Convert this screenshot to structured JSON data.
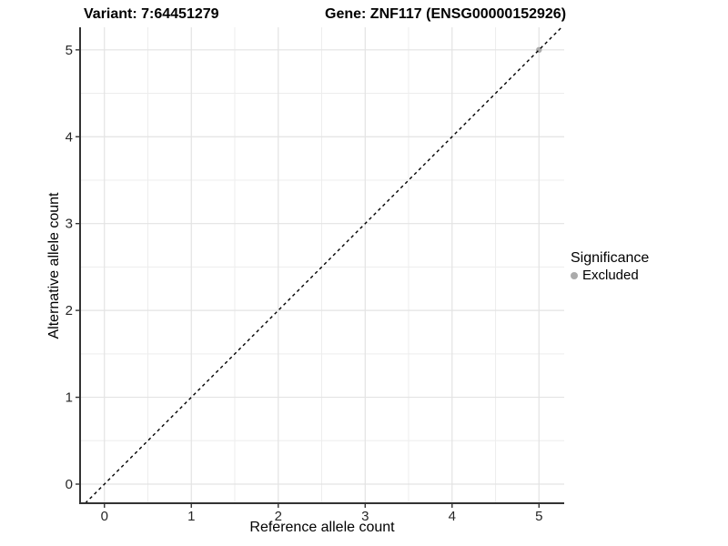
{
  "chart_data": {
    "type": "scatter",
    "title_left": "Variant: 7:64451279",
    "title_right": "Gene: ZNF117 (ENSG00000152926)",
    "xlabel": "Reference allele count",
    "ylabel": "Alternative allele count",
    "xticks": [
      0,
      1,
      2,
      3,
      4,
      5
    ],
    "yticks": [
      0,
      1,
      2,
      3,
      4,
      5
    ],
    "xlim": [
      -0.28,
      5.29
    ],
    "ylim": [
      -0.22,
      5.26
    ],
    "grid": "major+minor",
    "legend": {
      "position": "right",
      "title": "Significance",
      "items": [
        {
          "label": "Excluded",
          "color": "#ABABAB"
        }
      ]
    },
    "series": [
      {
        "name": "Excluded",
        "color": "#ABABAB",
        "point_radius": 3.2,
        "points": [
          [
            5,
            5
          ]
        ]
      }
    ],
    "reference_line": {
      "slope": 1,
      "intercept": 0,
      "style": "dashed",
      "color": "#000000"
    },
    "style_colors": {
      "grid_major": "#E3E3E3",
      "grid_minor": "#EDEDED",
      "axis_line": "#333333",
      "tick_mark": "#333333",
      "tick_text": "#262626"
    }
  }
}
